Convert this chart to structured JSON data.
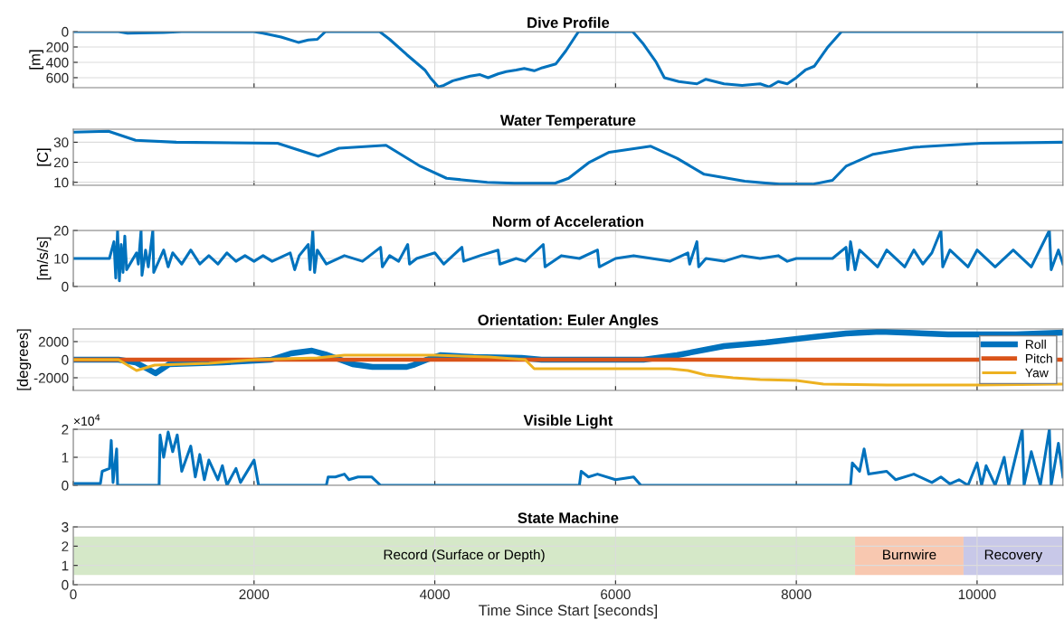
{
  "chart_data": [
    {
      "type": "line",
      "title": "Dive Profile",
      "ylabel": "[m]",
      "xlim": [
        0,
        10950
      ],
      "xticks": [
        0,
        2000,
        4000,
        6000,
        8000,
        10000
      ],
      "ylim": [
        730,
        0
      ],
      "yticks": [
        0,
        200,
        400,
        600
      ],
      "grid": true,
      "tick_labels": "y",
      "series": [
        {
          "color": "#0072bd",
          "x": [
            0,
            500,
            600,
            1000,
            1200,
            2000,
            2100,
            2300,
            2490,
            2600,
            2700,
            2790,
            2800,
            3390,
            3500,
            3690,
            3890,
            3950,
            4040,
            4100,
            4200,
            4390,
            4500,
            4590,
            4700,
            4790,
            4900,
            4990,
            5100,
            5190,
            5340,
            5450,
            5590,
            6190,
            6300,
            6450,
            6540,
            6700,
            6900,
            7000,
            7200,
            7400,
            7600,
            7700,
            7800,
            7900,
            8000,
            8100,
            8200,
            8350,
            8500,
            10950
          ],
          "values": [
            0,
            0,
            20,
            10,
            0,
            0,
            20,
            70,
            140,
            110,
            100,
            0,
            0,
            0,
            100,
            300,
            500,
            600,
            720,
            700,
            640,
            580,
            560,
            600,
            550,
            520,
            500,
            480,
            510,
            470,
            420,
            250,
            0,
            0,
            150,
            400,
            600,
            650,
            680,
            620,
            680,
            700,
            680,
            720,
            650,
            680,
            600,
            500,
            450,
            200,
            0,
            0
          ]
        }
      ]
    },
    {
      "type": "line",
      "title": "Water Temperature",
      "ylabel": "[C]",
      "xlim": [
        0,
        10950
      ],
      "xticks": [
        0,
        2000,
        4000,
        6000,
        8000,
        10000
      ],
      "ylim": [
        8.5,
        36.5
      ],
      "yticks": [
        10,
        20,
        30
      ],
      "grid": true,
      "tick_labels": "y",
      "series": [
        {
          "color": "#0072bd",
          "x": [
            0,
            390,
            690,
            1140,
            2260,
            2640,
            2710,
            2940,
            3460,
            3840,
            4130,
            4580,
            4880,
            5330,
            5480,
            5710,
            5930,
            6390,
            6680,
            6980,
            7430,
            7810,
            8180,
            8400,
            8550,
            8850,
            9300,
            10050,
            10950
          ],
          "values": [
            35,
            35.5,
            31,
            30,
            29.5,
            24,
            23,
            27,
            28.5,
            18,
            12,
            10,
            9.5,
            9.5,
            12,
            20,
            25,
            28,
            22,
            14,
            10.5,
            9,
            9,
            11,
            18,
            24,
            27.5,
            29.5,
            30
          ]
        }
      ]
    },
    {
      "type": "line",
      "title": "Norm of Acceleration",
      "ylabel": "[m/s/s]",
      "xlim": [
        0,
        10950
      ],
      "xticks": [
        0,
        2000,
        4000,
        6000,
        8000,
        10000
      ],
      "ylim": [
        0,
        20
      ],
      "yticks": [
        0,
        10,
        20
      ],
      "grid": true,
      "tick_labels": "y",
      "series": [
        {
          "color": "#0072bd",
          "x": [
            0,
            400,
            450,
            470,
            490,
            510,
            530,
            550,
            570,
            590,
            700,
            720,
            750,
            760,
            800,
            830,
            880,
            890,
            1000,
            1050,
            1100,
            1200,
            1300,
            1400,
            1500,
            1600,
            1700,
            1800,
            1900,
            2000,
            2100,
            2200,
            2400,
            2450,
            2500,
            2600,
            2620,
            2650,
            2670,
            2700,
            2800,
            3000,
            3200,
            3400,
            3420,
            3500,
            3600,
            3700,
            3720,
            3800,
            4000,
            4100,
            4300,
            4320,
            4500,
            4700,
            4720,
            4900,
            5000,
            5200,
            5220,
            5400,
            5600,
            5800,
            5820,
            6000,
            6200,
            6400,
            6600,
            6800,
            6820,
            6900,
            6920,
            7000,
            7200,
            7400,
            7600,
            7800,
            7900,
            8000,
            8200,
            8400,
            8550,
            8570,
            8600,
            8650,
            8700,
            8900,
            9000,
            9200,
            9300,
            9400,
            9500,
            9600,
            9620,
            9700,
            9900,
            10000,
            10200,
            10400,
            10600,
            10800,
            10820,
            10900,
            10950
          ],
          "values": [
            10,
            10,
            16,
            3,
            20,
            2,
            15,
            5,
            18,
            6,
            12,
            8,
            20,
            4,
            13,
            7,
            20,
            5,
            13,
            7,
            12,
            8,
            13,
            8,
            11,
            8,
            12,
            9,
            11,
            9,
            11,
            9,
            12,
            6,
            11,
            15,
            6,
            20,
            5,
            13,
            8,
            11,
            9,
            14,
            7,
            11,
            9,
            15,
            8,
            10,
            12,
            8,
            14,
            9,
            11,
            13,
            8,
            10,
            9,
            15,
            7,
            11,
            10,
            13,
            7,
            10,
            11,
            10,
            9,
            12,
            8,
            16,
            7,
            10,
            9,
            11,
            10,
            11,
            9,
            10,
            10,
            10,
            14,
            6,
            16,
            6,
            13,
            7,
            13,
            7,
            13,
            8,
            12,
            20,
            7,
            13,
            7,
            13,
            7,
            13,
            7,
            20,
            6,
            13,
            8
          ]
        }
      ]
    },
    {
      "type": "line",
      "title": "Orientation: Euler Angles",
      "ylabel": "[degrees]",
      "xlim": [
        0,
        10950
      ],
      "xticks": [
        0,
        2000,
        4000,
        6000,
        8000,
        10000
      ],
      "ylim": [
        -3400,
        3400
      ],
      "yticks": [
        -2000,
        0,
        2000
      ],
      "grid": true,
      "tick_labels": "y",
      "legend": "right",
      "series": [
        {
          "name": "Roll",
          "color": "#0072bd",
          "x": [
            0,
            500,
            690,
            910,
            1060,
            1660,
            2190,
            2410,
            2640,
            2790,
            3090,
            3310,
            3690,
            3760,
            3910,
            4060,
            4430,
            4960,
            5180,
            6310,
            6680,
            7200,
            7660,
            8180,
            8550,
            8930,
            9680,
            10430,
            10950
          ],
          "values": [
            0,
            0,
            -300,
            -1500,
            -500,
            -300,
            0,
            700,
            1000,
            600,
            -500,
            -800,
            -800,
            -600,
            0,
            500,
            300,
            200,
            0,
            0,
            500,
            1500,
            1900,
            2500,
            2900,
            3100,
            2800,
            2800,
            3000
          ]
        },
        {
          "name": "Pitch",
          "color": "#d95319",
          "x": [
            0,
            10950
          ],
          "values": [
            0,
            0
          ]
        },
        {
          "name": "Yaw",
          "color": "#edb120",
          "x": [
            0,
            500,
            700,
            900,
            1500,
            2000,
            2700,
            3000,
            4000,
            4600,
            5000,
            5100,
            6000,
            6600,
            6800,
            7000,
            7300,
            7600,
            8000,
            8300,
            9000,
            10000,
            10950
          ],
          "values": [
            0,
            0,
            -1200,
            -600,
            -400,
            0,
            200,
            500,
            500,
            300,
            0,
            -1000,
            -1000,
            -1000,
            -1200,
            -1700,
            -2000,
            -2200,
            -2300,
            -2700,
            -2800,
            -2800,
            -2700
          ]
        }
      ]
    },
    {
      "type": "line",
      "title": "Visible Light",
      "annotations": [
        "×10$^{4}$"
      ],
      "xlim": [
        0,
        10950
      ],
      "xticks": [
        0,
        2000,
        4000,
        6000,
        8000,
        10000
      ],
      "ylim": [
        0,
        2
      ],
      "yticks": [
        0,
        1,
        2
      ],
      "grid": true,
      "tick_labels": "y",
      "series": [
        {
          "color": "#0072bd",
          "x": [
            0,
            300,
            320,
            400,
            420,
            440,
            480,
            490,
            950,
            960,
            1000,
            1050,
            1100,
            1150,
            1200,
            1300,
            1350,
            1400,
            1450,
            1500,
            1600,
            1650,
            1700,
            1800,
            1850,
            2000,
            2050,
            2800,
            2820,
            2900,
            3000,
            3050,
            3150,
            3300,
            3400,
            5600,
            5620,
            5700,
            5800,
            6000,
            6200,
            6280,
            8600,
            8620,
            8700,
            8750,
            8800,
            9000,
            9100,
            9300,
            9500,
            9600,
            9700,
            9800,
            9900,
            10000,
            10050,
            10100,
            10200,
            10300,
            10350,
            10500,
            10520,
            10600,
            10700,
            10800,
            10820,
            10900,
            10950
          ],
          "values": [
            0.06,
            0.06,
            0.5,
            0.6,
            1.6,
            0.1,
            1.3,
            0,
            0,
            1.8,
            1.0,
            1.9,
            1.2,
            1.8,
            0.5,
            1.4,
            0.3,
            1.1,
            0.2,
            0.9,
            0.2,
            0.7,
            0,
            0.6,
            0.1,
            0.9,
            0,
            0,
            0.3,
            0.3,
            0.4,
            0.2,
            0.3,
            0.3,
            0,
            0,
            0.5,
            0.3,
            0.4,
            0.2,
            0.3,
            0,
            0,
            0.8,
            0.5,
            1.3,
            0.4,
            0.5,
            0.2,
            0.4,
            0.1,
            0.3,
            0.05,
            0.2,
            0,
            0.8,
            0,
            0.7,
            0,
            1.0,
            0,
            2.0,
            0,
            1.2,
            0,
            2.0,
            0,
            1.5,
            0.3
          ]
        }
      ]
    },
    {
      "type": "line",
      "title": "State Machine",
      "xlabel": "Time Since Start [seconds]",
      "xlim": [
        0,
        10950
      ],
      "xticks": [
        0,
        2000,
        4000,
        6000,
        8000,
        10000
      ],
      "ylim": [
        0,
        3
      ],
      "yticks": [
        0,
        1,
        2,
        3
      ],
      "grid": true,
      "bands": [
        {
          "axis": "x",
          "from": 0,
          "to": 8650,
          "label": "Record (Surface or Depth)",
          "color": "#d5e8c8"
        },
        {
          "axis": "x",
          "from": 8650,
          "to": 9850,
          "label": "Burnwire",
          "color": "#f8c8b0"
        },
        {
          "axis": "x",
          "from": 9850,
          "to": 10950,
          "label": "Recovery",
          "color": "#c8c8e8"
        }
      ]
    }
  ]
}
